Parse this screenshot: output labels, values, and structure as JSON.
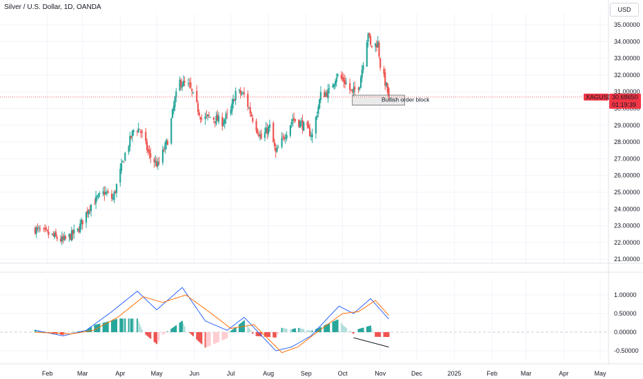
{
  "header": {
    "title": "Silver / U.S. Dollar, 1D, OANDA",
    "currency_button": "USD"
  },
  "price_tag": {
    "symbol": "XAGUSD",
    "price": "30.68650",
    "countdown": "01:19:39"
  },
  "annotation": {
    "label": "Bullish order block"
  },
  "colors": {
    "up": "#26a69a",
    "down": "#ef5350",
    "macd": "#2962ff",
    "signal": "#ff6d00",
    "price_line": "#f23645"
  },
  "chart_data": [
    {
      "type": "candlestick",
      "title": "Silver / U.S. Dollar, 1D, OANDA",
      "x_ticks": [
        "Feb",
        "Mar",
        "Apr",
        "May",
        "Jun",
        "Jul",
        "Aug",
        "Sep",
        "Oct",
        "Nov",
        "Dec",
        "2025",
        "Feb",
        "Mar",
        "Apr",
        "May"
      ],
      "y_ticks": [
        "35.00000",
        "34.00000",
        "33.00000",
        "32.00000",
        "31.00000",
        "30.00000",
        "29.00000",
        "28.00000",
        "27.00000",
        "26.00000",
        "25.00000",
        "24.00000",
        "23.00000",
        "22.00000",
        "21.00000"
      ],
      "ylim": [
        20.6,
        35.4
      ],
      "grid": true,
      "last_price": 30.6865,
      "order_block": {
        "label": "Bullish order block",
        "price_range": [
          30.2,
          30.8
        ]
      },
      "approx_close_path": [
        [
          "2024-01-22",
          22.8
        ],
        [
          "2024-02-05",
          22.4
        ],
        [
          "2024-02-14",
          22.1
        ],
        [
          "2024-02-26",
          22.7
        ],
        [
          "2024-03-07",
          24.2
        ],
        [
          "2024-03-19",
          25.0
        ],
        [
          "2024-03-26",
          24.6
        ],
        [
          "2024-04-05",
          27.3
        ],
        [
          "2024-04-12",
          28.7
        ],
        [
          "2024-04-17",
          28.8
        ],
        [
          "2024-04-25",
          27.2
        ],
        [
          "2024-05-02",
          26.6
        ],
        [
          "2024-05-10",
          28.1
        ],
        [
          "2024-05-16",
          30.5
        ],
        [
          "2024-05-20",
          31.6
        ],
        [
          "2024-05-28",
          31.3
        ],
        [
          "2024-06-07",
          29.4
        ],
        [
          "2024-06-14",
          29.5
        ],
        [
          "2024-06-24",
          29.2
        ],
        [
          "2024-07-01",
          29.8
        ],
        [
          "2024-07-05",
          31.0
        ],
        [
          "2024-07-12",
          30.8
        ],
        [
          "2024-07-18",
          29.6
        ],
        [
          "2024-07-26",
          28.2
        ],
        [
          "2024-08-02",
          28.9
        ],
        [
          "2024-08-07",
          27.3
        ],
        [
          "2024-08-15",
          28.5
        ],
        [
          "2024-08-21",
          29.4
        ],
        [
          "2024-08-28",
          29.1
        ],
        [
          "2024-09-06",
          28.4
        ],
        [
          "2024-09-13",
          30.8
        ],
        [
          "2024-09-20",
          31.0
        ],
        [
          "2024-09-26",
          32.0
        ],
        [
          "2024-10-03",
          31.6
        ],
        [
          "2024-10-09",
          30.9
        ],
        [
          "2024-10-15",
          31.5
        ],
        [
          "2024-10-22",
          34.6
        ],
        [
          "2024-10-24",
          33.7
        ],
        [
          "2024-10-30",
          33.9
        ],
        [
          "2024-11-01",
          32.6
        ],
        [
          "2024-11-06",
          31.3
        ],
        [
          "2024-11-08",
          30.7
        ]
      ]
    },
    {
      "type": "line",
      "name": "MACD panel",
      "y_ticks": [
        "1.00000",
        "0.50000",
        "0.00000",
        "-0.50000"
      ],
      "ylim": [
        -0.75,
        1.3
      ],
      "series": [
        {
          "name": "MACD",
          "color": "#2962ff",
          "points": [
            [
              "2024-01-22",
              0.05
            ],
            [
              "2024-02-14",
              -0.1
            ],
            [
              "2024-03-04",
              0.05
            ],
            [
              "2024-03-25",
              0.55
            ],
            [
              "2024-04-15",
              1.1
            ],
            [
              "2024-05-01",
              0.6
            ],
            [
              "2024-05-22",
              1.2
            ],
            [
              "2024-06-10",
              0.3
            ],
            [
              "2024-06-28",
              0.05
            ],
            [
              "2024-07-12",
              0.4
            ],
            [
              "2024-08-07",
              -0.5
            ],
            [
              "2024-08-20",
              -0.4
            ],
            [
              "2024-09-05",
              -0.1
            ],
            [
              "2024-09-28",
              0.7
            ],
            [
              "2024-10-10",
              0.5
            ],
            [
              "2024-10-24",
              0.9
            ],
            [
              "2024-11-08",
              0.35
            ]
          ]
        },
        {
          "name": "Signal",
          "color": "#ff6d00",
          "points": [
            [
              "2024-01-22",
              0.0
            ],
            [
              "2024-02-20",
              -0.05
            ],
            [
              "2024-03-10",
              0.05
            ],
            [
              "2024-03-30",
              0.4
            ],
            [
              "2024-04-20",
              0.95
            ],
            [
              "2024-05-06",
              0.8
            ],
            [
              "2024-05-25",
              1.0
            ],
            [
              "2024-06-15",
              0.5
            ],
            [
              "2024-07-01",
              0.1
            ],
            [
              "2024-07-20",
              0.2
            ],
            [
              "2024-08-12",
              -0.55
            ],
            [
              "2024-08-25",
              -0.4
            ],
            [
              "2024-09-10",
              0.0
            ],
            [
              "2024-10-01",
              0.5
            ],
            [
              "2024-10-14",
              0.55
            ],
            [
              "2024-10-28",
              0.85
            ],
            [
              "2024-11-08",
              0.45
            ]
          ]
        }
      ],
      "histogram": true
    }
  ]
}
